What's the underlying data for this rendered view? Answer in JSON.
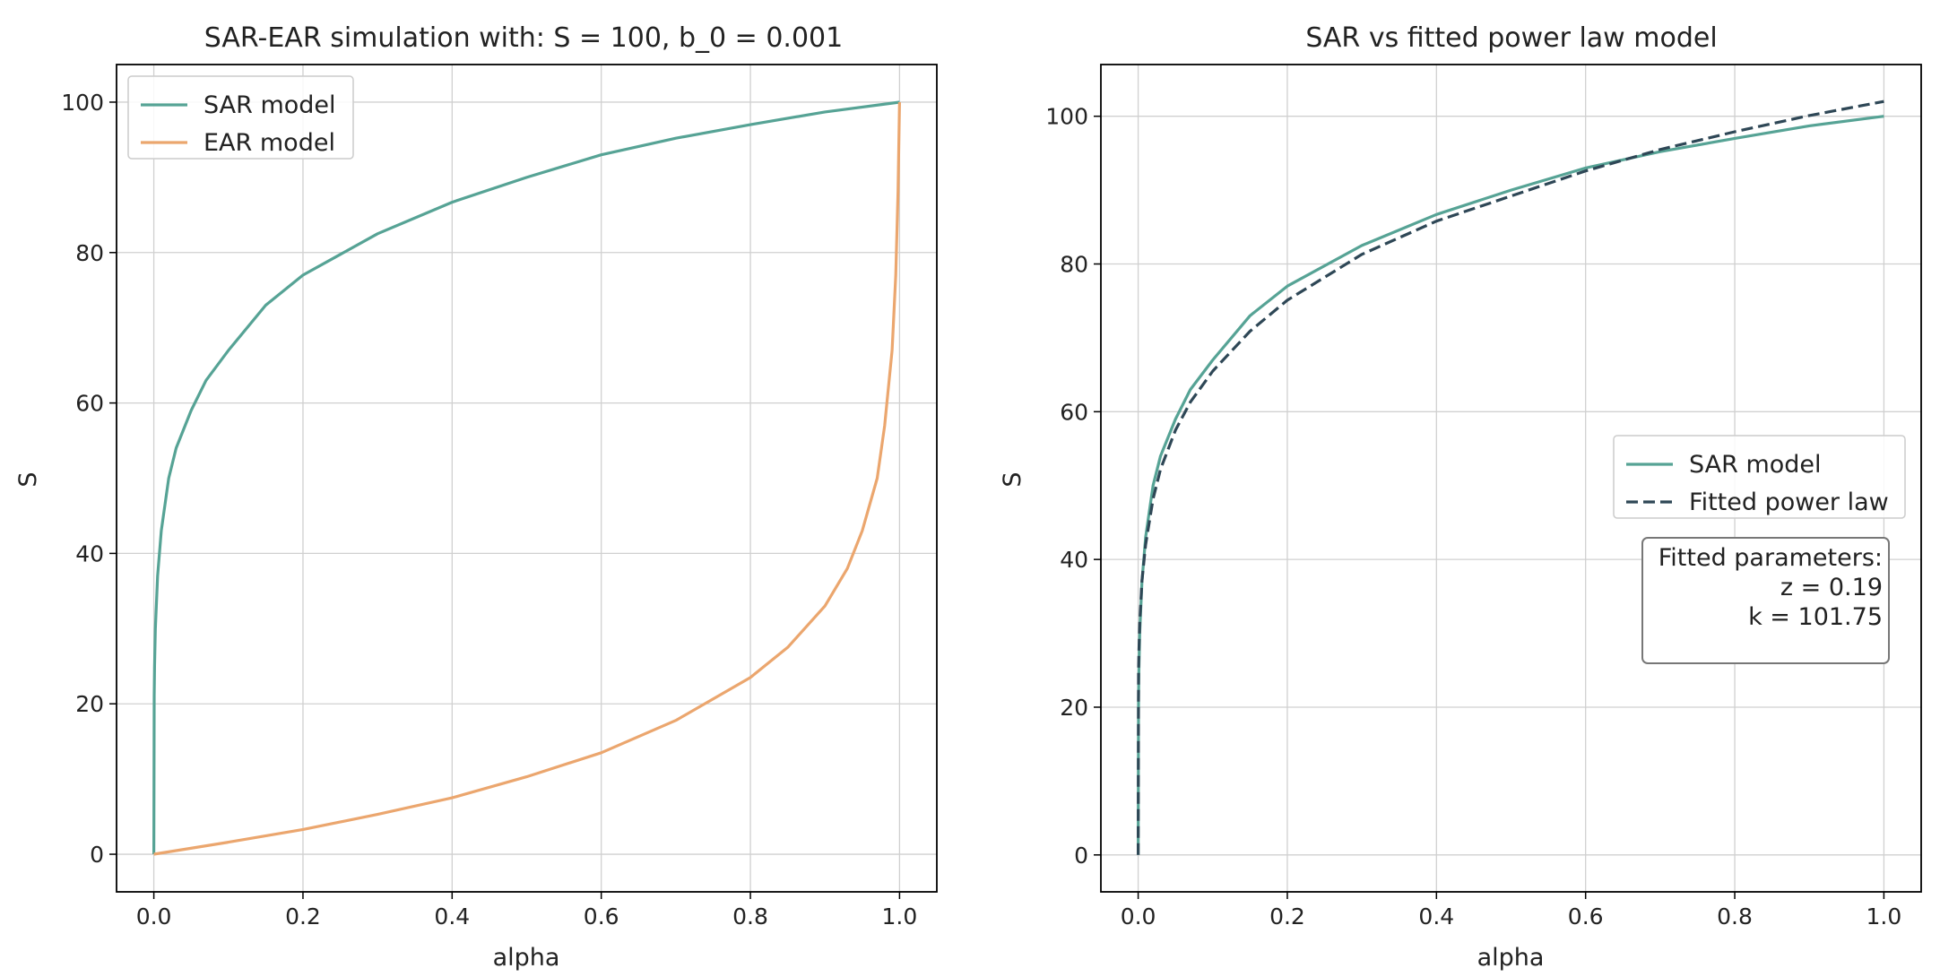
{
  "chart_data": [
    {
      "type": "line",
      "title": "SAR-EAR simulation with: S = 100, b_0 = 0.001",
      "xlabel": "alpha",
      "ylabel": "S",
      "xlim": [
        -0.05,
        1.05
      ],
      "ylim": [
        -5,
        105
      ],
      "xticks": [
        "0.0",
        "0.2",
        "0.4",
        "0.6",
        "0.8",
        "1.0"
      ],
      "yticks": [
        "0",
        "20",
        "40",
        "60",
        "80",
        "100"
      ],
      "grid": true,
      "legend_position": "upper left",
      "series": [
        {
          "name": "SAR model",
          "color": "#56a395",
          "style": "solid",
          "x": [
            0,
            0.0005,
            0.001,
            0.002,
            0.005,
            0.01,
            0.02,
            0.03,
            0.05,
            0.07,
            0.1,
            0.15,
            0.2,
            0.3,
            0.4,
            0.5,
            0.6,
            0.7,
            0.8,
            0.9,
            1.0
          ],
          "y": [
            0,
            21,
            25,
            30,
            37,
            43,
            50,
            54,
            59,
            63,
            67,
            73,
            77,
            82.5,
            86.7,
            90,
            93,
            95.2,
            97,
            98.7,
            100
          ]
        },
        {
          "name": "EAR model",
          "color": "#eba66e",
          "style": "solid",
          "x": [
            0,
            0.1,
            0.2,
            0.3,
            0.4,
            0.5,
            0.6,
            0.7,
            0.8,
            0.85,
            0.9,
            0.93,
            0.95,
            0.97,
            0.98,
            0.99,
            0.995,
            0.998,
            1.0
          ],
          "y": [
            0,
            1.6,
            3.3,
            5.3,
            7.5,
            10.3,
            13.5,
            17.8,
            23.5,
            27.5,
            33,
            38,
            43,
            50,
            57,
            67,
            77,
            88,
            100
          ]
        }
      ]
    },
    {
      "type": "line",
      "title": "SAR vs fitted power law model",
      "xlabel": "alpha",
      "ylabel": "S",
      "xlim": [
        -0.05,
        1.05
      ],
      "ylim": [
        -5,
        107
      ],
      "xticks": [
        "0.0",
        "0.2",
        "0.4",
        "0.6",
        "0.8",
        "1.0"
      ],
      "yticks": [
        "0",
        "20",
        "40",
        "60",
        "80",
        "100"
      ],
      "grid": true,
      "legend_position": "center right",
      "series": [
        {
          "name": "SAR model",
          "color": "#56a395",
          "style": "solid",
          "x": [
            0,
            0.0005,
            0.001,
            0.002,
            0.005,
            0.01,
            0.02,
            0.03,
            0.05,
            0.07,
            0.1,
            0.15,
            0.2,
            0.3,
            0.4,
            0.5,
            0.6,
            0.7,
            0.8,
            0.9,
            1.0
          ],
          "y": [
            0,
            21,
            25,
            30,
            37,
            43,
            50,
            54,
            59,
            63,
            67,
            73,
            77,
            82.5,
            86.7,
            90,
            93,
            95.2,
            97,
            98.7,
            100
          ]
        },
        {
          "name": "Fitted power law",
          "color": "#2e4756",
          "style": "dashed",
          "x": [
            0,
            0.0005,
            0.001,
            0.002,
            0.005,
            0.01,
            0.02,
            0.03,
            0.05,
            0.07,
            0.1,
            0.15,
            0.2,
            0.3,
            0.4,
            0.5,
            0.6,
            0.7,
            0.8,
            0.9,
            1.0
          ],
          "y": [
            0,
            24.9,
            27.4,
            31.3,
            37.1,
            42.0,
            48.2,
            52.2,
            57.5,
            61.3,
            65.5,
            70.9,
            75.1,
            81.3,
            85.8,
            89.2,
            92.6,
            95.5,
            97.9,
            100.1,
            102
          ]
        }
      ],
      "annotation": {
        "lines": [
          "Fitted parameters:",
          "z = 0.19",
          "k = 101.75"
        ]
      }
    }
  ]
}
